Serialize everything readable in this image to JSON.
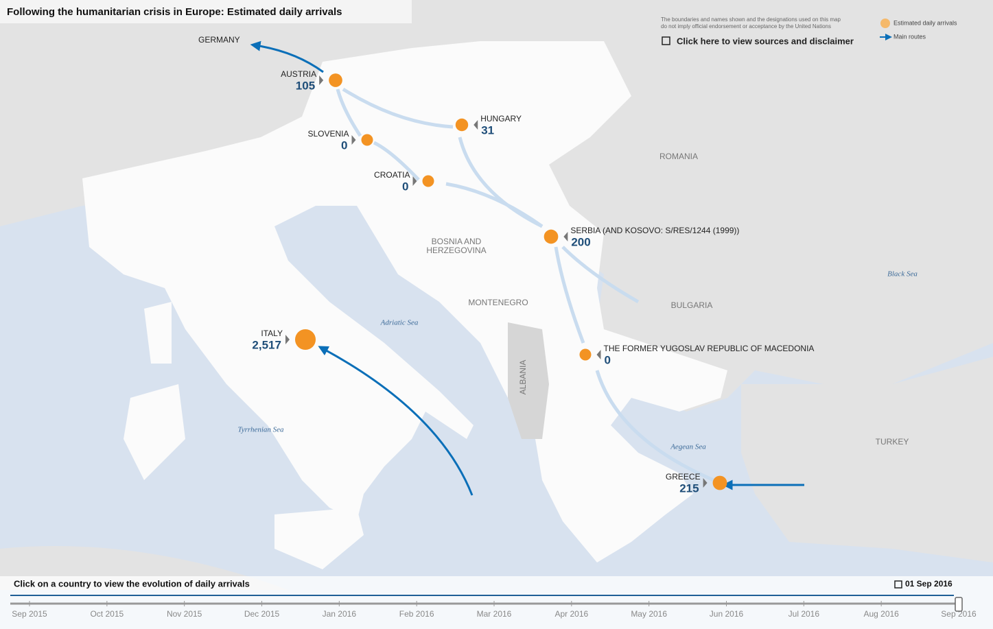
{
  "header": {
    "title": "Following the humanitarian crisis in Europe: Estimated daily arrivals",
    "disclaimer": [
      "The boundaries and names shown and the designations used on this map",
      "do not imply official endorsement or acceptance by the United Nations"
    ],
    "link": "Click here to view sources and disclaimer"
  },
  "legend": {
    "arrivals": "Estimated daily arrivals",
    "routes": "Main routes"
  },
  "destination": "GERMANY",
  "countries": [
    {
      "name": "AUSTRIA",
      "value": 105
    },
    {
      "name": "SLOVENIA",
      "value": 0
    },
    {
      "name": "CROATIA",
      "value": 0
    },
    {
      "name": "HUNGARY",
      "value": 31
    },
    {
      "name": "SERBIA (AND KOSOVO: S/RES/1244 (1999))",
      "value": 200
    },
    {
      "name": "THE FORMER YUGOSLAV REPUBLIC OF MACEDONIA",
      "value": 0
    },
    {
      "name": "GREECE",
      "value": 215
    },
    {
      "name": "ITALY",
      "value": 2517,
      "value_label": "2,517"
    }
  ],
  "other_countries": [
    "ROMANIA",
    "BOSNIA AND",
    "HERZEGOVINA",
    "MONTENEGRO",
    "BULGARIA",
    "ALBANIA",
    "TURKEY"
  ],
  "seas": [
    "Black Sea",
    "Adriatic Sea",
    "Tyrrhenian Sea",
    "Aegean Sea"
  ],
  "timeline": {
    "instruction": "Click on a country to view the evolution of daily arrivals",
    "selected": "01 Sep 2016",
    "months": [
      "Sep 2015",
      "Oct 2015",
      "Nov 2015",
      "Dec 2015",
      "Jan 2016",
      "Feb 2016",
      "Mar 2016",
      "Apr 2016",
      "May 2016",
      "Jun 2016",
      "Jul 2016",
      "Aug 2016",
      "Sep 2016"
    ]
  }
}
